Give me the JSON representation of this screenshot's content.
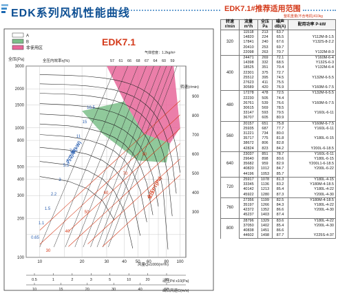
{
  "header": {
    "title": "EDK系列风机性能曲线",
    "table_title": "EDK7.1#推荐适用范围",
    "table_note": "整机重量(不含电机)410kg"
  },
  "chart_data": {
    "type": "line",
    "title": "EDK7.1",
    "density_note": "气体密度：1.2kg/m³",
    "legend": [
      {
        "key": "A",
        "color": "#ffffff"
      },
      {
        "key": "B",
        "color": "#7cc08a"
      },
      {
        "key": "非使用区",
        "color": "#e8679a"
      }
    ],
    "y_axis": {
      "label": "全压(Pa)",
      "ticks": [
        "3000",
        "2000",
        "1500",
        "1000",
        "800",
        "500",
        "400",
        "300",
        "200",
        "100"
      ]
    },
    "x_axis": {
      "label": "风量Qx1000(m³/h)",
      "ticks": [
        "10",
        "20",
        "30",
        "40",
        "50",
        "60",
        "80",
        "100"
      ]
    },
    "bottom_axes": [
      {
        "label": "动压Pd x10(Pa)",
        "ticks": [
          "0.5",
          "1",
          "2",
          "3",
          "5",
          "10",
          "20",
          "30"
        ]
      },
      {
        "label": "出口风速C(m/s)",
        "ticks": [
          "10",
          "15",
          "20",
          "30",
          "40",
          "50"
        ]
      }
    ],
    "right_axis": {
      "label": "转速(r/min)",
      "ticks": [
        "900",
        "800",
        "700",
        "600",
        "500",
        "400",
        "300"
      ]
    },
    "efficiency_axis_label": "全压内效率η(%)",
    "efficiency_marks": [
      "57",
      "61",
      "66",
      "68",
      "67",
      "64",
      "60",
      "59"
    ],
    "curve_labels": {
      "power": "内功率(kW)",
      "pressure": "全压PT(Pa)",
      "power_values": [
        "18.5",
        "15",
        "11",
        "7.5",
        "5.5",
        "3",
        "2.2",
        "1.5",
        "1.1",
        "0.65"
      ],
      "speed_marks": [
        "90",
        "70",
        "60",
        "50",
        "40",
        "30"
      ]
    }
  },
  "table": {
    "headers": [
      "转速 r/min",
      "流量 m³/h",
      "全压 Pa",
      "噪声 dB(A)",
      "配用功率 P-kW"
    ],
    "groups": [
      {
        "speed": "320",
        "rows": [
          [
            "11518",
            "213",
            "63.7",
            ""
          ],
          [
            "14820",
            "224",
            "65.5",
            "Y112M-8-1.5"
          ],
          [
            "17841",
            "240",
            "67.6",
            "Y132S-8-2.2"
          ],
          [
            "20410",
            "253",
            "69.7",
            ""
          ],
          [
            "22098",
            "263",
            "70.7",
            "Y132M-8-3"
          ]
        ]
      },
      {
        "speed": "400",
        "rows": [
          [
            "24471",
            "269",
            "72.1",
            "Y160M-6-4"
          ],
          [
            "14398",
            "332",
            "68.5",
            "Y132S-6-3"
          ],
          [
            "18525",
            "351",
            "70.4",
            "Y132M-6-4"
          ],
          [
            "22301",
            "375",
            "72.7",
            ""
          ],
          [
            "25512",
            "395",
            "74.5",
            "Y132M-6-5.5"
          ],
          [
            "27623",
            "411",
            "75.5",
            ""
          ],
          [
            "30589",
            "420",
            "76.9",
            "Y160M-6-7.5"
          ]
        ]
      },
      {
        "speed": "480",
        "rows": [
          [
            "17278",
            "478",
            "72.5",
            "Y132M-6-5.5"
          ],
          [
            "22230",
            "505",
            "74.4",
            ""
          ],
          [
            "26761",
            "539",
            "76.6",
            "Y160M-6-7.5"
          ],
          [
            "30615",
            "569",
            "78.5",
            ""
          ],
          [
            "33147",
            "593",
            "79.5",
            "Y160L-6-11"
          ],
          [
            "36707",
            "605",
            "80.9",
            ""
          ]
        ]
      },
      {
        "speed": "560",
        "rows": [
          [
            "20157",
            "651",
            "75.8",
            "Y160M-6-7.5"
          ],
          [
            "25935",
            "687",
            "77.7",
            "Y160L-6-11"
          ],
          [
            "31221",
            "734",
            "80.0",
            ""
          ],
          [
            "35717",
            "775",
            "81.8",
            "Y180L-6-15"
          ],
          [
            "38672",
            "806",
            "82.8",
            ""
          ],
          [
            "42824",
            "823",
            "84.2",
            "Y200L-6-18.5"
          ]
        ]
      },
      {
        "speed": "640",
        "rows": [
          [
            "23037",
            "851",
            "78.7",
            "Y160L-6-11"
          ],
          [
            "29640",
            "898",
            "80.6",
            "Y180L-6-15"
          ],
          [
            "35682",
            "959",
            "82.9",
            "Y200L1-6-18.5"
          ],
          [
            "40820",
            "1012",
            "84.7",
            "Y200L-6-22"
          ],
          [
            "44196",
            "1053",
            "85.7",
            ""
          ]
        ]
      },
      {
        "speed": "720",
        "rows": [
          [
            "25917",
            "1078",
            "81.3",
            "Y180L-4-15"
          ],
          [
            "33345",
            "1136",
            "83.2",
            "Y180M-4-18.5"
          ],
          [
            "40142",
            "1213",
            "85.4",
            "Y180L-4-22"
          ],
          [
            "45922",
            "1280",
            "87.3",
            "Y200L-4-30"
          ]
        ]
      },
      {
        "speed": "760",
        "rows": [
          [
            "27356",
            "1199",
            "82.5",
            "Y180M-4-18.5"
          ],
          [
            "35197",
            "1266",
            "84.3",
            "Y180L-4-22"
          ],
          [
            "42372",
            "1352",
            "86.6",
            "Y200L-4-30"
          ],
          [
            "45237",
            "1403",
            "87.4",
            ""
          ]
        ]
      },
      {
        "speed": "800",
        "rows": [
          [
            "28796",
            "1329",
            "83.6",
            "Y180L-4-22"
          ],
          [
            "37050",
            "1402",
            "85.4",
            "Y200L-4-30"
          ],
          [
            "40838",
            "1451",
            "86.6",
            ""
          ],
          [
            "44602",
            "1498",
            "87.7",
            "Y225S-4-37"
          ]
        ]
      }
    ]
  },
  "colors": {
    "accent": "#0d4f93",
    "title_red": "#d43a1a",
    "zone_b": "#7cc08a",
    "zone_pink": "#e8679a",
    "curve_blue": "#2a5fb0",
    "curve_red": "#d43a1a"
  }
}
